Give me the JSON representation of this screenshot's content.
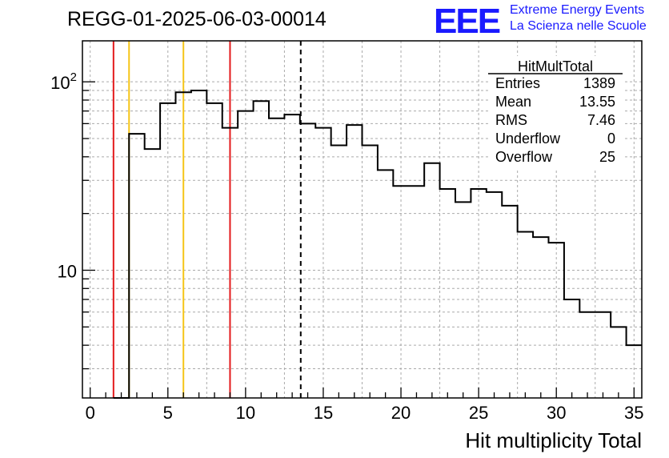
{
  "header": {
    "title": "REGG-01-2025-06-03-00014",
    "logo": "EEE",
    "tagline_1": "Extreme Energy Events",
    "tagline_2": "La Scienza nelle Scuole"
  },
  "stats_box": {
    "title": "HitMultTotal",
    "rows": [
      {
        "label": "Entries",
        "value": "1389"
      },
      {
        "label": "Mean",
        "value": "13.55"
      },
      {
        "label": "RMS",
        "value": "7.46"
      },
      {
        "label": "Underflow",
        "value": "0"
      },
      {
        "label": "Overflow",
        "value": "25"
      }
    ]
  },
  "chart_data": {
    "type": "histogram",
    "title": "REGG-01-2025-06-03-00014",
    "xlabel": "Hit multiplicity Total",
    "ylabel": "",
    "xlim": [
      -0.5,
      35.5
    ],
    "ylim": [
      2.1,
      165
    ],
    "y_scale": "log",
    "grid": true,
    "bin_width": 1,
    "x_ticks": [
      0,
      5,
      10,
      15,
      20,
      25,
      30,
      35
    ],
    "y_tick_labels": [
      {
        "value": 10,
        "base": "10",
        "exp": ""
      },
      {
        "value": 100,
        "base": "10",
        "exp": "2"
      }
    ],
    "bins": [
      {
        "x": 2,
        "count": 0
      },
      {
        "x": 3,
        "count": 53
      },
      {
        "x": 4,
        "count": 44
      },
      {
        "x": 5,
        "count": 77
      },
      {
        "x": 6,
        "count": 88
      },
      {
        "x": 7,
        "count": 90
      },
      {
        "x": 8,
        "count": 77
      },
      {
        "x": 9,
        "count": 57
      },
      {
        "x": 10,
        "count": 70
      },
      {
        "x": 11,
        "count": 79
      },
      {
        "x": 12,
        "count": 64
      },
      {
        "x": 13,
        "count": 67
      },
      {
        "x": 14,
        "count": 60
      },
      {
        "x": 15,
        "count": 57
      },
      {
        "x": 16,
        "count": 46
      },
      {
        "x": 17,
        "count": 59
      },
      {
        "x": 18,
        "count": 46
      },
      {
        "x": 19,
        "count": 34
      },
      {
        "x": 20,
        "count": 28
      },
      {
        "x": 21,
        "count": 28
      },
      {
        "x": 22,
        "count": 37
      },
      {
        "x": 23,
        "count": 27
      },
      {
        "x": 24,
        "count": 23
      },
      {
        "x": 25,
        "count": 27
      },
      {
        "x": 26,
        "count": 26
      },
      {
        "x": 27,
        "count": 22
      },
      {
        "x": 28,
        "count": 16
      },
      {
        "x": 29,
        "count": 15
      },
      {
        "x": 30,
        "count": 14
      },
      {
        "x": 31,
        "count": 7
      },
      {
        "x": 32,
        "count": 6
      },
      {
        "x": 33,
        "count": 6
      },
      {
        "x": 34,
        "count": 5
      },
      {
        "x": 35,
        "count": 4
      }
    ],
    "reference_lines": [
      {
        "x": 1.5,
        "color": "#e41a1c",
        "style": "solid"
      },
      {
        "x": 2.5,
        "color": "#f5c518",
        "style": "solid"
      },
      {
        "x": 6.0,
        "color": "#f5c518",
        "style": "solid"
      },
      {
        "x": 9.0,
        "color": "#e41a1c",
        "style": "solid"
      },
      {
        "x": 13.55,
        "color": "#000000",
        "style": "dashed"
      }
    ]
  }
}
